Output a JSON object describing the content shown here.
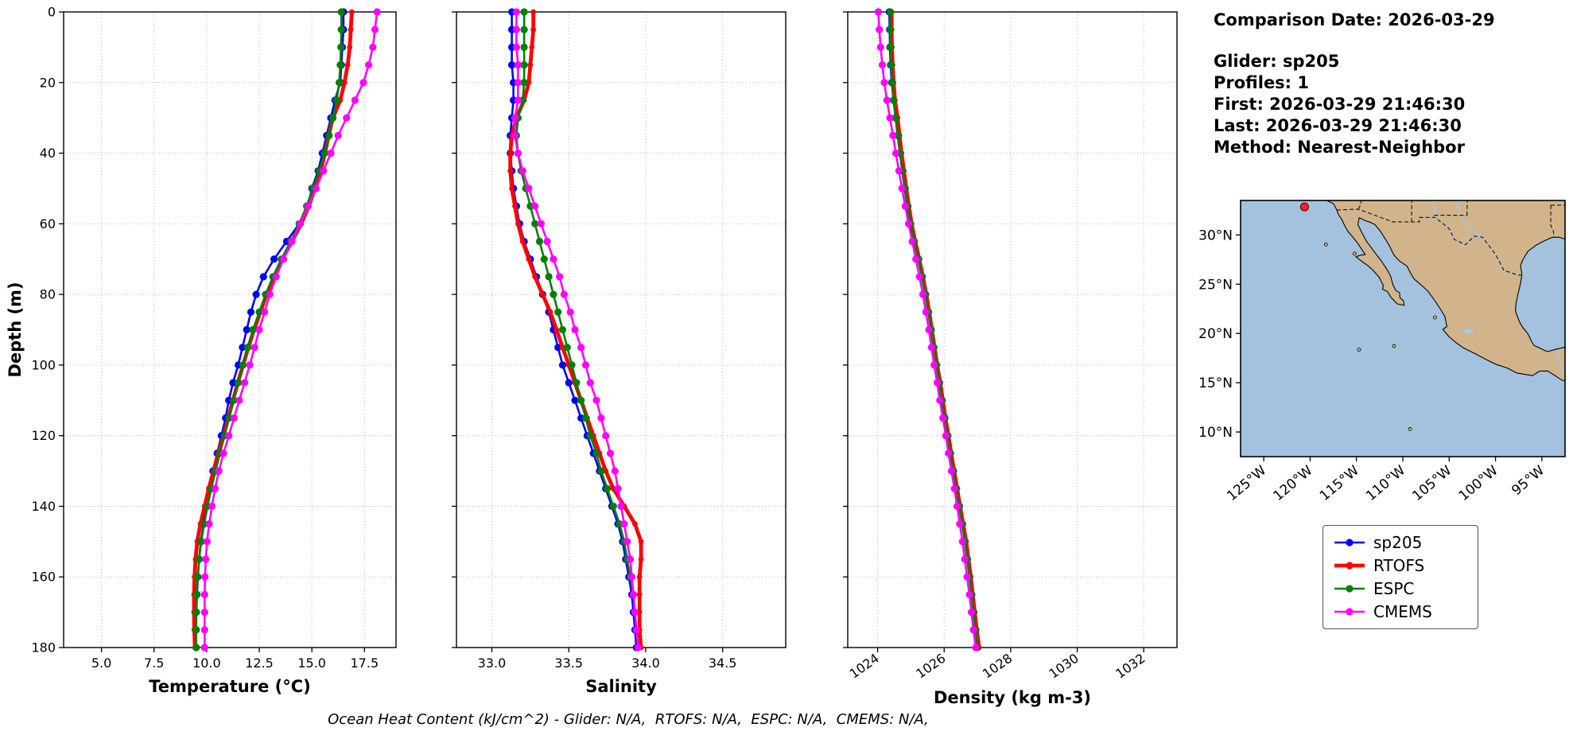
{
  "info_panel": {
    "comparison_date": "Comparison Date: 2026-03-29",
    "glider": "Glider: sp205",
    "profiles": "Profiles: 1",
    "first": "First: 2026-03-29 21:46:30",
    "last": "Last: 2026-03-29 21:46:30",
    "method": "Method: Nearest-Neighbor"
  },
  "footer_note": "Ocean Heat Content (kJ/cm^2) - Glider: N/A,  RTOFS: N/A,  ESPC: N/A,  CMEMS: N/A,",
  "legend": {
    "entries": [
      {
        "label": "sp205",
        "color": "#0000ff",
        "lw": 2.6
      },
      {
        "label": "RTOFS",
        "color": "#ff0000",
        "lw": 4.8
      },
      {
        "label": "ESPC",
        "color": "#008000",
        "lw": 2.6
      },
      {
        "label": "CMEMS",
        "color": "#ff00ff",
        "lw": 2.6
      }
    ]
  },
  "map": {
    "ocean_color": "#a4c2de",
    "land_color": "#d2b48c",
    "river_color": "#9ecae8",
    "lat_ticks": [
      {
        "label": "30°N",
        "v": 30
      },
      {
        "label": "25°N",
        "v": 25
      },
      {
        "label": "20°N",
        "v": 20
      },
      {
        "label": "15°N",
        "v": 15
      },
      {
        "label": "10°N",
        "v": 10
      }
    ],
    "lon_ticks": [
      {
        "label": "125°W",
        "v": -125
      },
      {
        "label": "120°W",
        "v": -120
      },
      {
        "label": "115°W",
        "v": -115
      },
      {
        "label": "110°W",
        "v": -110
      },
      {
        "label": "105°W",
        "v": -105
      },
      {
        "label": "100°W",
        "v": -100
      },
      {
        "label": "95°W",
        "v": -95
      }
    ],
    "marker": {
      "lon": -120.6,
      "lat": 32.85,
      "color": "#ff2222"
    }
  },
  "chart_data": [
    {
      "id": "temperature",
      "type": "line",
      "xlabel": "Temperature (°C)",
      "ylabel": "Depth (m)",
      "xlim": [
        3.2,
        19.0
      ],
      "ylim": [
        0,
        180
      ],
      "grid": true,
      "xticks": [
        {
          "label": "5.0",
          "v": 5.0
        },
        {
          "label": "7.5",
          "v": 7.5
        },
        {
          "label": "10.0",
          "v": 10.0
        },
        {
          "label": "12.5",
          "v": 12.5
        },
        {
          "label": "15.0",
          "v": 15.0
        },
        {
          "label": "17.5",
          "v": 17.5
        }
      ],
      "yticks": [
        {
          "label": "0",
          "v": 0
        },
        {
          "label": "20",
          "v": 20
        },
        {
          "label": "40",
          "v": 40
        },
        {
          "label": "60",
          "v": 60
        },
        {
          "label": "80",
          "v": 80
        },
        {
          "label": "100",
          "v": 100
        },
        {
          "label": "120",
          "v": 120
        },
        {
          "label": "140",
          "v": 140
        },
        {
          "label": "160",
          "v": 160
        },
        {
          "label": "180",
          "v": 180
        }
      ],
      "depths": [
        0,
        5,
        10,
        15,
        20,
        25,
        30,
        35,
        40,
        45,
        50,
        55,
        60,
        65,
        70,
        75,
        80,
        85,
        90,
        95,
        100,
        105,
        110,
        115,
        120,
        125,
        130,
        135,
        140,
        145,
        150,
        155,
        160,
        165,
        170,
        175,
        180
      ],
      "series": [
        {
          "name": "sp205",
          "color": "#0000ff",
          "lw": 2.6,
          "ms": 4.6,
          "values": [
            16.5,
            16.5,
            16.45,
            16.4,
            16.35,
            16.1,
            15.9,
            15.7,
            15.5,
            15.3,
            15.0,
            14.8,
            14.4,
            13.8,
            13.2,
            12.7,
            12.35,
            12.1,
            11.9,
            11.7,
            11.5,
            11.25,
            11.05,
            10.9,
            10.7,
            10.5,
            10.3,
            10.15,
            10.0,
            9.85,
            9.72,
            9.64,
            9.58,
            9.54,
            9.51,
            9.5,
            9.5
          ]
        },
        {
          "name": "RTOFS",
          "color": "#ff0000",
          "lw": 4.8,
          "ms": 3.4,
          "values": [
            16.9,
            16.85,
            16.8,
            16.7,
            16.55,
            16.35,
            16.0,
            15.8,
            15.62,
            15.42,
            15.15,
            14.85,
            14.5,
            14.05,
            13.6,
            13.2,
            12.85,
            12.55,
            12.25,
            11.98,
            11.73,
            11.48,
            11.25,
            11.03,
            10.8,
            10.55,
            10.32,
            10.1,
            9.9,
            9.7,
            9.55,
            9.47,
            9.42,
            9.4,
            9.4,
            9.41,
            9.44
          ]
        },
        {
          "name": "ESPC",
          "color": "#008000",
          "lw": 2.6,
          "ms": 4.6,
          "values": [
            16.4,
            16.4,
            16.38,
            16.35,
            16.3,
            16.18,
            16.0,
            15.82,
            15.6,
            15.35,
            15.05,
            14.75,
            14.4,
            14.0,
            13.55,
            13.15,
            12.8,
            12.5,
            12.2,
            11.95,
            11.72,
            11.5,
            11.28,
            11.06,
            10.85,
            10.63,
            10.42,
            10.22,
            10.04,
            9.88,
            9.74,
            9.64,
            9.57,
            9.52,
            9.5,
            9.5,
            9.5
          ]
        },
        {
          "name": "CMEMS",
          "color": "#ff00ff",
          "lw": 2.6,
          "ms": 4.6,
          "values": [
            18.1,
            18.0,
            17.9,
            17.7,
            17.45,
            17.05,
            16.65,
            16.25,
            15.9,
            15.55,
            15.2,
            14.82,
            14.45,
            14.05,
            13.65,
            13.3,
            13.0,
            12.75,
            12.5,
            12.28,
            12.05,
            11.8,
            11.55,
            11.3,
            11.05,
            10.8,
            10.58,
            10.4,
            10.25,
            10.12,
            10.02,
            9.96,
            9.92,
            9.9,
            9.9,
            9.9,
            9.9
          ]
        }
      ]
    },
    {
      "id": "salinity",
      "type": "line",
      "xlabel": "Salinity",
      "xlim": [
        32.77,
        34.91
      ],
      "ylim": [
        0,
        180
      ],
      "grid": true,
      "xticks": [
        {
          "label": "33.0",
          "v": 33.0
        },
        {
          "label": "33.5",
          "v": 33.5
        },
        {
          "label": "34.0",
          "v": 34.0
        },
        {
          "label": "34.5",
          "v": 34.5
        }
      ],
      "yticks": [
        {
          "label": "0",
          "v": 0
        },
        {
          "label": "20",
          "v": 20
        },
        {
          "label": "40",
          "v": 40
        },
        {
          "label": "60",
          "v": 60
        },
        {
          "label": "80",
          "v": 80
        },
        {
          "label": "100",
          "v": 100
        },
        {
          "label": "120",
          "v": 120
        },
        {
          "label": "140",
          "v": 140
        },
        {
          "label": "160",
          "v": 160
        },
        {
          "label": "180",
          "v": 180
        }
      ],
      "depths": [
        0,
        5,
        10,
        15,
        20,
        25,
        30,
        35,
        40,
        45,
        50,
        55,
        60,
        65,
        70,
        75,
        80,
        85,
        90,
        95,
        100,
        105,
        110,
        115,
        120,
        125,
        130,
        135,
        140,
        145,
        150,
        155,
        160,
        165,
        170,
        175,
        180
      ],
      "series": [
        {
          "name": "sp205",
          "color": "#0000ff",
          "lw": 2.6,
          "ms": 4.6,
          "values": [
            33.13,
            33.13,
            33.13,
            33.13,
            33.14,
            33.14,
            33.13,
            33.12,
            33.12,
            33.13,
            33.14,
            33.16,
            33.18,
            33.21,
            33.25,
            33.29,
            33.33,
            33.37,
            33.4,
            33.43,
            33.46,
            33.5,
            33.54,
            33.58,
            33.62,
            33.66,
            33.7,
            33.74,
            33.78,
            33.82,
            33.85,
            33.87,
            33.89,
            33.91,
            33.92,
            33.93,
            33.94
          ]
        },
        {
          "name": "RTOFS",
          "color": "#ff0000",
          "lw": 4.8,
          "ms": 3.4,
          "values": [
            33.27,
            33.27,
            33.26,
            33.25,
            33.24,
            33.21,
            33.16,
            33.13,
            33.12,
            33.12,
            33.13,
            33.15,
            33.17,
            33.2,
            33.24,
            33.28,
            33.33,
            33.38,
            33.42,
            33.46,
            33.5,
            33.54,
            33.58,
            33.62,
            33.66,
            33.7,
            33.74,
            33.79,
            33.86,
            33.93,
            33.97,
            33.97,
            33.96,
            33.96,
            33.96,
            33.96,
            33.97
          ]
        },
        {
          "name": "ESPC",
          "color": "#008000",
          "lw": 2.6,
          "ms": 4.6,
          "values": [
            33.21,
            33.21,
            33.21,
            33.21,
            33.21,
            33.2,
            33.17,
            33.16,
            33.17,
            33.19,
            33.22,
            33.25,
            33.28,
            33.31,
            33.34,
            33.37,
            33.4,
            33.43,
            33.46,
            33.49,
            33.52,
            33.55,
            33.58,
            33.61,
            33.64,
            33.68,
            33.71,
            33.75,
            33.79,
            33.83,
            33.86,
            33.88,
            33.9,
            33.92,
            33.93,
            33.94,
            33.95
          ]
        },
        {
          "name": "CMEMS",
          "color": "#ff00ff",
          "lw": 2.6,
          "ms": 4.6,
          "values": [
            33.16,
            33.16,
            33.16,
            33.17,
            33.17,
            33.17,
            33.15,
            33.15,
            33.17,
            33.2,
            33.24,
            33.28,
            33.32,
            33.36,
            33.4,
            33.44,
            33.47,
            33.51,
            33.54,
            33.58,
            33.61,
            33.64,
            33.68,
            33.71,
            33.74,
            33.77,
            33.8,
            33.82,
            33.84,
            33.86,
            33.88,
            33.9,
            33.91,
            33.92,
            33.93,
            33.94,
            33.95
          ]
        }
      ]
    },
    {
      "id": "density",
      "type": "line",
      "xlabel": "Density (kg m-3)",
      "xlim": [
        1023.1,
        1033.0
      ],
      "ylim": [
        0,
        180
      ],
      "grid": true,
      "xticks": [
        {
          "label": "1024",
          "v": 1024
        },
        {
          "label": "1026",
          "v": 1026
        },
        {
          "label": "1028",
          "v": 1028
        },
        {
          "label": "1030",
          "v": 1030
        },
        {
          "label": "1032",
          "v": 1032
        }
      ],
      "yticks": [
        {
          "label": "0",
          "v": 0
        },
        {
          "label": "20",
          "v": 20
        },
        {
          "label": "40",
          "v": 40
        },
        {
          "label": "60",
          "v": 60
        },
        {
          "label": "80",
          "v": 80
        },
        {
          "label": "100",
          "v": 100
        },
        {
          "label": "120",
          "v": 120
        },
        {
          "label": "140",
          "v": 140
        },
        {
          "label": "160",
          "v": 160
        },
        {
          "label": "180",
          "v": 180
        }
      ],
      "depths": [
        0,
        5,
        10,
        15,
        20,
        25,
        30,
        35,
        40,
        45,
        50,
        55,
        60,
        65,
        70,
        75,
        80,
        85,
        90,
        95,
        100,
        105,
        110,
        115,
        120,
        125,
        130,
        135,
        140,
        145,
        150,
        155,
        160,
        165,
        170,
        175,
        180
      ],
      "series": [
        {
          "name": "sp205",
          "color": "#0000ff",
          "lw": 2.6,
          "ms": 4.6,
          "values": [
            1024.35,
            1024.36,
            1024.37,
            1024.39,
            1024.42,
            1024.48,
            1024.54,
            1024.6,
            1024.67,
            1024.74,
            1024.81,
            1024.89,
            1024.98,
            1025.1,
            1025.23,
            1025.34,
            1025.44,
            1025.53,
            1025.61,
            1025.69,
            1025.77,
            1025.86,
            1025.94,
            1026.02,
            1026.11,
            1026.19,
            1026.28,
            1026.37,
            1026.46,
            1026.55,
            1026.63,
            1026.7,
            1026.77,
            1026.83,
            1026.89,
            1026.95,
            1027.0
          ]
        },
        {
          "name": "RTOFS",
          "color": "#ff0000",
          "lw": 4.8,
          "ms": 3.4,
          "values": [
            1024.42,
            1024.42,
            1024.43,
            1024.45,
            1024.48,
            1024.52,
            1024.6,
            1024.66,
            1024.72,
            1024.79,
            1024.86,
            1024.94,
            1025.02,
            1025.13,
            1025.25,
            1025.36,
            1025.46,
            1025.55,
            1025.63,
            1025.71,
            1025.79,
            1025.88,
            1025.96,
            1026.04,
            1026.13,
            1026.21,
            1026.3,
            1026.39,
            1026.48,
            1026.57,
            1026.66,
            1026.73,
            1026.8,
            1026.86,
            1026.92,
            1026.98,
            1027.05
          ]
        },
        {
          "name": "ESPC",
          "color": "#008000",
          "lw": 2.6,
          "ms": 4.6,
          "values": [
            1024.38,
            1024.38,
            1024.39,
            1024.41,
            1024.43,
            1024.48,
            1024.54,
            1024.61,
            1024.67,
            1024.74,
            1024.82,
            1024.9,
            1024.99,
            1025.1,
            1025.22,
            1025.33,
            1025.43,
            1025.52,
            1025.61,
            1025.69,
            1025.77,
            1025.85,
            1025.93,
            1026.01,
            1026.1,
            1026.18,
            1026.27,
            1026.36,
            1026.45,
            1026.54,
            1026.62,
            1026.69,
            1026.76,
            1026.82,
            1026.88,
            1026.94,
            1026.99
          ]
        },
        {
          "name": "CMEMS",
          "color": "#ff00ff",
          "lw": 2.6,
          "ms": 4.6,
          "values": [
            1024.02,
            1024.05,
            1024.09,
            1024.14,
            1024.2,
            1024.28,
            1024.37,
            1024.46,
            1024.55,
            1024.64,
            1024.73,
            1024.83,
            1024.93,
            1025.04,
            1025.15,
            1025.26,
            1025.36,
            1025.45,
            1025.54,
            1025.62,
            1025.7,
            1025.79,
            1025.87,
            1025.96,
            1026.05,
            1026.13,
            1026.22,
            1026.31,
            1026.39,
            1026.47,
            1026.55,
            1026.62,
            1026.69,
            1026.76,
            1026.82,
            1026.88,
            1026.95
          ]
        }
      ]
    }
  ]
}
